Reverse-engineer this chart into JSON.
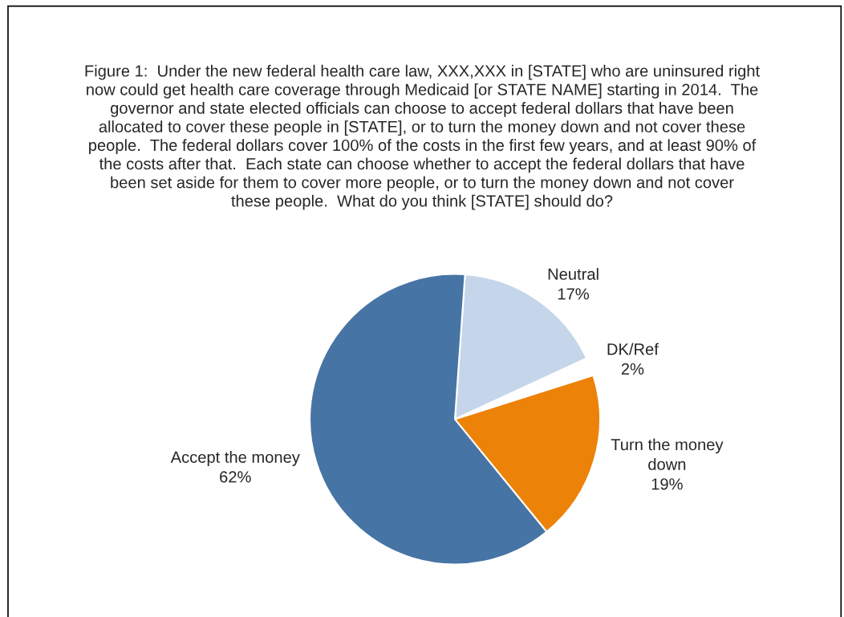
{
  "chart_data": {
    "type": "pie",
    "title": "Figure 1:  Under the new federal health care law, XXX,XXX in [STATE] who are uninsured right\nnow could get health care coverage through Medicaid [or STATE NAME] starting in 2014.  The\ngovernor and state elected officials can choose to accept federal dollars that have been\nallocated to cover these people in [STATE], or to turn the money down and not cover these\npeople.  The federal dollars cover 100% of the costs in the first few years, and at least 90% of\nthe costs after that.  Each state can choose whether to accept the federal dollars that have\nbeen set aside for them to cover more people, or to turn the money down and not cover\nthese people.  What do you think [STATE] should do?",
    "categories": [
      "Neutral",
      "DK/Ref",
      "Turn the money\ndown",
      "Accept the money"
    ],
    "values": [
      17,
      2,
      19,
      62
    ],
    "value_labels": [
      "17%",
      "2%",
      "19%",
      "62%"
    ],
    "colors": [
      "#c5d6ea",
      "#ffffff",
      "#ed8208",
      "#4674a4"
    ],
    "legend": false
  }
}
